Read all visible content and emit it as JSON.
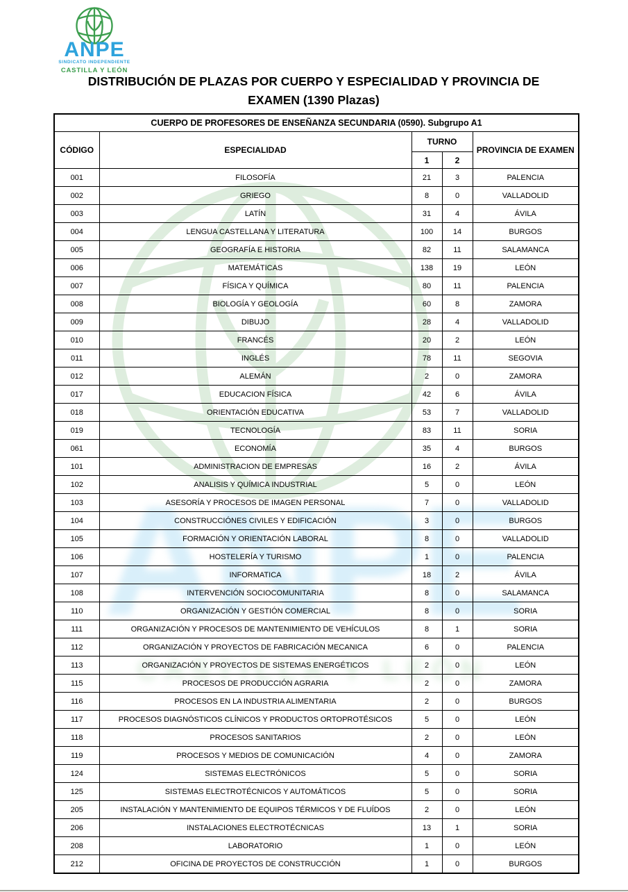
{
  "logo": {
    "brand": "ANPE",
    "subtitle1": "SINDICATO INDEPENDIENTE",
    "subtitle2": "CASTILLA Y LEÓN"
  },
  "title_line1": "DISTRIBUCIÓN DE PLAZAS POR CUERPO Y ESPECIALIDAD Y PROVINCIA DE",
  "title_line2": "EXAMEN (1390 Plazas)",
  "watermark": {
    "anpe_text": "ANPE",
    "cyl_text": "CASTILLA Y LEÓN",
    "globe_color": "#d4e8d4",
    "anpe_color": "#d9effa",
    "cyl_color": "#d9ecda"
  },
  "colors": {
    "brand_blue": "#2ea3dc",
    "brand_green": "#3c9e4e",
    "border": "#000000",
    "page_edge": "#a3a69e"
  },
  "table": {
    "caption": "CUERPO DE PROFESORES DE ENSEÑANZA SECUNDARIA (0590). Subgrupo A1",
    "columns": {
      "codigo": "CÓDIGO",
      "especialidad": "ESPECIALIDAD",
      "turno": "TURNO",
      "turno1": "1",
      "turno2": "2",
      "provincia": "PROVINCIA DE EXAMEN"
    },
    "rows": [
      [
        "001",
        "FILOSOFÍA",
        "21",
        "3",
        "PALENCIA"
      ],
      [
        "002",
        "GRIEGO",
        "8",
        "0",
        "VALLADOLID"
      ],
      [
        "003",
        "LATÍN",
        "31",
        "4",
        "ÁVILA"
      ],
      [
        "004",
        "LENGUA CASTELLANA Y LITERATURA",
        "100",
        "14",
        "BURGOS"
      ],
      [
        "005",
        "GEOGRAFÍA E HISTORIA",
        "82",
        "11",
        "SALAMANCA"
      ],
      [
        "006",
        "MATEMÁTICAS",
        "138",
        "19",
        "LEÓN"
      ],
      [
        "007",
        "FÍSICA Y QUÍMICA",
        "80",
        "11",
        "PALENCIA"
      ],
      [
        "008",
        "BIOLOGÍA Y GEOLOGÍA",
        "60",
        "8",
        "ZAMORA"
      ],
      [
        "009",
        "DIBUJO",
        "28",
        "4",
        "VALLADOLID"
      ],
      [
        "010",
        "FRANCÉS",
        "20",
        "2",
        "LEÓN"
      ],
      [
        "011",
        "INGLÉS",
        "78",
        "11",
        "SEGOVIA"
      ],
      [
        "012",
        "ALEMÁN",
        "2",
        "0",
        "ZAMORA"
      ],
      [
        "017",
        "EDUCACION FÍSICA",
        "42",
        "6",
        "ÁVILA"
      ],
      [
        "018",
        "ORIENTACIÓN EDUCATIVA",
        "53",
        "7",
        "VALLADOLID"
      ],
      [
        "019",
        "TECNOLOGÍA",
        "83",
        "11",
        "SORIA"
      ],
      [
        "061",
        "ECONOMÍA",
        "35",
        "4",
        "BURGOS"
      ],
      [
        "101",
        "ADMINISTRACION DE EMPRESAS",
        "16",
        "2",
        "ÁVILA"
      ],
      [
        "102",
        "ANALISIS Y QUÍMICA INDUSTRIAL",
        "5",
        "0",
        "LEÓN"
      ],
      [
        "103",
        "ASESORÍA Y PROCESOS DE IMAGEN PERSONAL",
        "7",
        "0",
        "VALLADOLID"
      ],
      [
        "104",
        "CONSTRUCCIÓNES CIVILES Y EDIFICACIÓN",
        "3",
        "0",
        "BURGOS"
      ],
      [
        "105",
        "FORMACIÓN Y ORIENTACIÓN LABORAL",
        "8",
        "0",
        "VALLADOLID"
      ],
      [
        "106",
        "HOSTELERÍA Y TURISMO",
        "1",
        "0",
        "PALENCIA"
      ],
      [
        "107",
        "INFORMATICA",
        "18",
        "2",
        "ÁVILA"
      ],
      [
        "108",
        "INTERVENCIÓN SOCIOCOMUNITARIA",
        "8",
        "0",
        "SALAMANCA"
      ],
      [
        "110",
        "ORGANIZACIÓN Y GESTIÓN COMERCIAL",
        "8",
        "0",
        "SORIA"
      ],
      [
        "111",
        "ORGANIZACIÓN Y PROCESOS DE MANTENIMIENTO DE VEHÍCULOS",
        "8",
        "1",
        "SORIA"
      ],
      [
        "112",
        "ORGANIZACIÓN Y PROYECTOS DE FABRICACIÓN MECANICA",
        "6",
        "0",
        "PALENCIA"
      ],
      [
        "113",
        "ORGANIZACIÓN Y PROYECTOS DE SISTEMAS ENERGÉTICOS",
        "2",
        "0",
        "LEÓN"
      ],
      [
        "115",
        "PROCESOS DE PRODUCCIÓN AGRARIA",
        "2",
        "0",
        "ZAMORA"
      ],
      [
        "116",
        "PROCESOS EN LA INDUSTRIA ALIMENTARIA",
        "2",
        "0",
        "BURGOS"
      ],
      [
        "117",
        "PROCESOS DIAGNÓSTICOS CLÍNICOS Y PRODUCTOS ORTOPROTÉSICOS",
        "5",
        "0",
        "LEÓN"
      ],
      [
        "118",
        "PROCESOS SANITARIOS",
        "2",
        "0",
        "LEÓN"
      ],
      [
        "119",
        "PROCESOS Y MEDIOS DE COMUNICACIÓN",
        "4",
        "0",
        "ZAMORA"
      ],
      [
        "124",
        "SISTEMAS ELECTRÓNICOS",
        "5",
        "0",
        "SORIA"
      ],
      [
        "125",
        "SISTEMAS ELECTROTÉCNICOS Y AUTOMÁTICOS",
        "5",
        "0",
        "SORIA"
      ],
      [
        "205",
        "INSTALACIÓN Y MANTENIMIENTO DE EQUIPOS TÉRMICOS Y DE FLUÍDOS",
        "2",
        "0",
        "LEÓN"
      ],
      [
        "206",
        "INSTALACIONES ELECTROTÉCNICAS",
        "13",
        "1",
        "SORIA"
      ],
      [
        "208",
        "LABORATORIO",
        "1",
        "0",
        "LEÓN"
      ],
      [
        "212",
        "OFICINA DE PROYECTOS DE CONSTRUCCIÓN",
        "1",
        "0",
        "BURGOS"
      ]
    ]
  }
}
